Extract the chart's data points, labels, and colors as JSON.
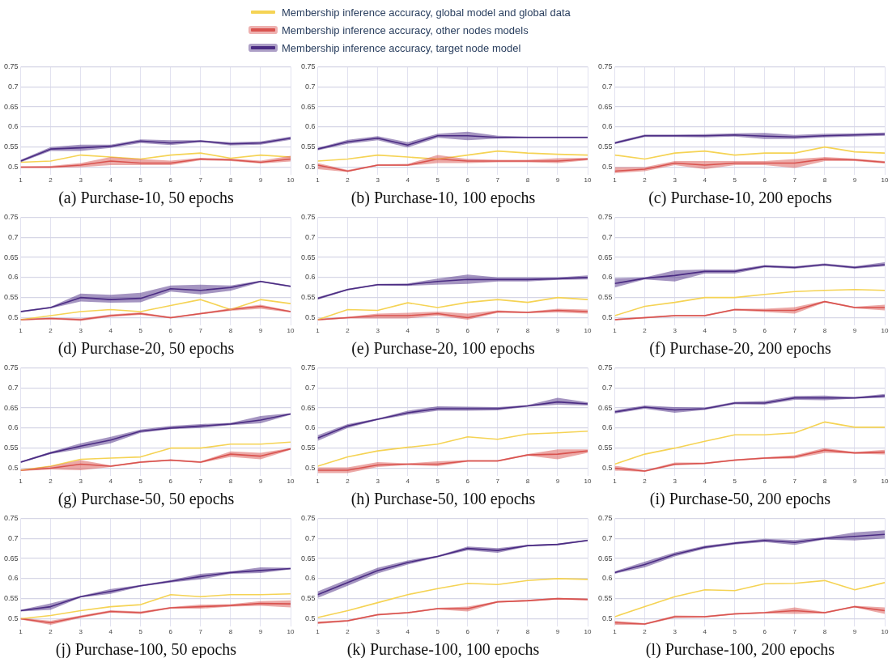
{
  "chart_data": [
    {
      "type": "line",
      "title": "(a) Purchase-10, 50 epochs",
      "x": [
        1,
        2,
        3,
        4,
        5,
        6,
        7,
        8,
        9,
        10
      ],
      "xlim": [
        1,
        10
      ],
      "xticks": [
        1,
        2,
        3,
        4,
        5,
        6,
        7,
        8,
        9,
        10
      ],
      "ylim": [
        0.48,
        0.75
      ],
      "yticks": [
        0.5,
        0.55,
        0.6,
        0.65,
        0.7,
        0.75
      ],
      "grid": true,
      "legend": "top",
      "series": [
        {
          "name": "Membership inference accuracy, global model and global data",
          "color": "#f5d354",
          "values": [
            0.512,
            0.515,
            0.53,
            0.525,
            0.52,
            0.53,
            0.535,
            0.522,
            0.53,
            0.525
          ]
        },
        {
          "name": "Membership inference accuracy, other nodes models",
          "color": "#d9534f",
          "values": [
            0.5,
            0.5,
            0.505,
            0.515,
            0.51,
            0.51,
            0.52,
            0.518,
            0.512,
            0.52
          ],
          "lower": [
            0.498,
            0.498,
            0.5,
            0.505,
            0.505,
            0.505,
            0.517,
            0.515,
            0.509,
            0.514
          ],
          "upper": [
            0.502,
            0.503,
            0.51,
            0.525,
            0.52,
            0.516,
            0.523,
            0.521,
            0.516,
            0.528
          ]
        },
        {
          "name": "Membership inference accuracy, target node model",
          "color": "#4b2c83",
          "values": [
            0.515,
            0.545,
            0.548,
            0.552,
            0.565,
            0.56,
            0.565,
            0.558,
            0.56,
            0.572
          ],
          "lower": [
            0.512,
            0.54,
            0.54,
            0.548,
            0.56,
            0.555,
            0.562,
            0.554,
            0.556,
            0.568
          ],
          "upper": [
            0.518,
            0.55,
            0.556,
            0.556,
            0.569,
            0.567,
            0.567,
            0.562,
            0.564,
            0.576
          ]
        }
      ]
    },
    {
      "type": "line",
      "title": "(b) Purchase-10, 100 epochs",
      "x": [
        1,
        2,
        3,
        4,
        5,
        6,
        7,
        8,
        9,
        10
      ],
      "xlim": [
        1,
        10
      ],
      "xticks": [
        1,
        2,
        3,
        4,
        5,
        6,
        7,
        8,
        9,
        10
      ],
      "ylim": [
        0.48,
        0.75
      ],
      "yticks": [
        0.5,
        0.55,
        0.6,
        0.65,
        0.7,
        0.75
      ],
      "grid": true,
      "series": [
        {
          "color": "#f5d354",
          "values": [
            0.515,
            0.52,
            0.53,
            0.525,
            0.52,
            0.53,
            0.54,
            0.535,
            0.532,
            0.53
          ]
        },
        {
          "color": "#d9534f",
          "values": [
            0.505,
            0.49,
            0.505,
            0.505,
            0.52,
            0.515,
            0.515,
            0.515,
            0.515,
            0.52
          ],
          "lower": [
            0.495,
            0.488,
            0.503,
            0.503,
            0.51,
            0.51,
            0.512,
            0.512,
            0.51,
            0.517
          ],
          "upper": [
            0.51,
            0.493,
            0.507,
            0.508,
            0.53,
            0.52,
            0.518,
            0.518,
            0.522,
            0.523
          ]
        },
        {
          "color": "#4b2c83",
          "values": [
            0.545,
            0.563,
            0.572,
            0.555,
            0.578,
            0.578,
            0.574,
            0.574,
            0.574,
            0.574
          ],
          "lower": [
            0.542,
            0.558,
            0.567,
            0.549,
            0.573,
            0.567,
            0.571,
            0.572,
            0.572,
            0.572
          ],
          "upper": [
            0.548,
            0.568,
            0.577,
            0.562,
            0.583,
            0.588,
            0.578,
            0.576,
            0.576,
            0.576
          ]
        }
      ]
    },
    {
      "type": "line",
      "title": "(c) Purchase-10, 200 epochs",
      "x": [
        1,
        2,
        3,
        4,
        5,
        6,
        7,
        8,
        9,
        10
      ],
      "xlim": [
        1,
        10
      ],
      "xticks": [
        1,
        2,
        3,
        4,
        5,
        6,
        7,
        8,
        9,
        10
      ],
      "ylim": [
        0.48,
        0.75
      ],
      "yticks": [
        0.5,
        0.55,
        0.6,
        0.65,
        0.7,
        0.75
      ],
      "grid": true,
      "series": [
        {
          "color": "#f5d354",
          "values": [
            0.53,
            0.52,
            0.535,
            0.54,
            0.53,
            0.535,
            0.535,
            0.55,
            0.538,
            0.535
          ]
        },
        {
          "color": "#d9534f",
          "values": [
            0.49,
            0.495,
            0.51,
            0.505,
            0.51,
            0.51,
            0.51,
            0.52,
            0.518,
            0.512
          ],
          "lower": [
            0.485,
            0.49,
            0.505,
            0.495,
            0.505,
            0.505,
            0.498,
            0.515,
            0.515,
            0.509
          ],
          "upper": [
            0.5,
            0.5,
            0.515,
            0.515,
            0.515,
            0.515,
            0.52,
            0.525,
            0.521,
            0.515
          ]
        },
        {
          "color": "#4b2c83",
          "values": [
            0.56,
            0.578,
            0.578,
            0.578,
            0.58,
            0.577,
            0.575,
            0.578,
            0.58,
            0.582
          ],
          "lower": [
            0.557,
            0.575,
            0.575,
            0.574,
            0.576,
            0.57,
            0.57,
            0.574,
            0.576,
            0.578
          ],
          "upper": [
            0.563,
            0.581,
            0.581,
            0.582,
            0.584,
            0.585,
            0.58,
            0.583,
            0.584,
            0.586
          ]
        }
      ]
    },
    {
      "type": "line",
      "title": "(d) Purchase-20, 50 epochs",
      "x": [
        1,
        2,
        3,
        4,
        5,
        6,
        7,
        8,
        9,
        10
      ],
      "xlim": [
        1,
        10
      ],
      "xticks": [
        1,
        2,
        3,
        4,
        5,
        6,
        7,
        8,
        9,
        10
      ],
      "ylim": [
        0.48,
        0.75
      ],
      "yticks": [
        0.5,
        0.55,
        0.6,
        0.65,
        0.7,
        0.75
      ],
      "grid": true,
      "series": [
        {
          "color": "#f5d354",
          "values": [
            0.495,
            0.505,
            0.515,
            0.52,
            0.515,
            0.53,
            0.545,
            0.52,
            0.545,
            0.535
          ]
        },
        {
          "color": "#d9534f",
          "values": [
            0.495,
            0.498,
            0.495,
            0.505,
            0.51,
            0.5,
            0.51,
            0.52,
            0.528,
            0.515
          ],
          "lower": [
            0.493,
            0.496,
            0.492,
            0.502,
            0.507,
            0.498,
            0.508,
            0.517,
            0.522,
            0.513
          ],
          "upper": [
            0.497,
            0.5,
            0.498,
            0.508,
            0.513,
            0.502,
            0.512,
            0.523,
            0.532,
            0.517
          ]
        },
        {
          "color": "#4b2c83",
          "values": [
            0.515,
            0.525,
            0.55,
            0.545,
            0.548,
            0.572,
            0.568,
            0.575,
            0.59,
            0.578
          ],
          "lower": [
            0.513,
            0.523,
            0.54,
            0.537,
            0.538,
            0.565,
            0.558,
            0.567,
            0.588,
            0.576
          ],
          "upper": [
            0.517,
            0.527,
            0.56,
            0.557,
            0.562,
            0.58,
            0.582,
            0.58,
            0.592,
            0.58
          ]
        }
      ]
    },
    {
      "type": "line",
      "title": "(e) Purchase-20, 100 epochs",
      "x": [
        1,
        2,
        3,
        4,
        5,
        6,
        7,
        8,
        9,
        10
      ],
      "xlim": [
        1,
        10
      ],
      "xticks": [
        1,
        2,
        3,
        4,
        5,
        6,
        7,
        8,
        9,
        10
      ],
      "ylim": [
        0.48,
        0.75
      ],
      "yticks": [
        0.5,
        0.55,
        0.6,
        0.65,
        0.7,
        0.75
      ],
      "grid": true,
      "series": [
        {
          "color": "#f5d354",
          "values": [
            0.495,
            0.52,
            0.518,
            0.537,
            0.525,
            0.538,
            0.545,
            0.538,
            0.55,
            0.545
          ]
        },
        {
          "color": "#d9534f",
          "values": [
            0.495,
            0.5,
            0.505,
            0.505,
            0.51,
            0.5,
            0.515,
            0.513,
            0.518,
            0.515
          ],
          "lower": [
            0.493,
            0.498,
            0.498,
            0.498,
            0.505,
            0.495,
            0.512,
            0.511,
            0.513,
            0.51
          ],
          "upper": [
            0.497,
            0.502,
            0.51,
            0.512,
            0.515,
            0.51,
            0.518,
            0.515,
            0.522,
            0.52
          ]
        },
        {
          "color": "#4b2c83",
          "values": [
            0.548,
            0.57,
            0.582,
            0.582,
            0.59,
            0.595,
            0.595,
            0.595,
            0.597,
            0.6
          ],
          "lower": [
            0.545,
            0.568,
            0.58,
            0.579,
            0.582,
            0.584,
            0.59,
            0.59,
            0.594,
            0.595
          ],
          "upper": [
            0.551,
            0.572,
            0.584,
            0.585,
            0.597,
            0.607,
            0.6,
            0.6,
            0.6,
            0.605
          ]
        }
      ]
    },
    {
      "type": "line",
      "title": "(f) Purchase-20, 200 epochs",
      "x": [
        1,
        2,
        3,
        4,
        5,
        6,
        7,
        8,
        9,
        10
      ],
      "xlim": [
        1,
        10
      ],
      "xticks": [
        1,
        2,
        3,
        4,
        5,
        6,
        7,
        8,
        9,
        10
      ],
      "ylim": [
        0.48,
        0.75
      ],
      "yticks": [
        0.5,
        0.55,
        0.6,
        0.65,
        0.7,
        0.75
      ],
      "grid": true,
      "series": [
        {
          "color": "#f5d354",
          "values": [
            0.505,
            0.528,
            0.538,
            0.55,
            0.55,
            0.558,
            0.565,
            0.568,
            0.57,
            0.568
          ]
        },
        {
          "color": "#d9534f",
          "values": [
            0.495,
            0.5,
            0.505,
            0.505,
            0.52,
            0.518,
            0.518,
            0.54,
            0.525,
            0.525
          ],
          "lower": [
            0.493,
            0.498,
            0.503,
            0.503,
            0.518,
            0.514,
            0.51,
            0.538,
            0.523,
            0.518
          ],
          "upper": [
            0.497,
            0.502,
            0.507,
            0.507,
            0.522,
            0.522,
            0.526,
            0.542,
            0.527,
            0.532
          ]
        },
        {
          "color": "#4b2c83",
          "values": [
            0.585,
            0.598,
            0.605,
            0.615,
            0.615,
            0.628,
            0.625,
            0.632,
            0.625,
            0.632
          ],
          "lower": [
            0.575,
            0.595,
            0.59,
            0.61,
            0.61,
            0.625,
            0.622,
            0.629,
            0.622,
            0.628
          ],
          "upper": [
            0.598,
            0.6,
            0.618,
            0.62,
            0.62,
            0.631,
            0.628,
            0.635,
            0.628,
            0.638
          ]
        }
      ]
    },
    {
      "type": "line",
      "title": "(g) Purchase-50, 50 epochs",
      "x": [
        1,
        2,
        3,
        4,
        5,
        6,
        7,
        8,
        9,
        10
      ],
      "xlim": [
        1,
        10
      ],
      "xticks": [
        1,
        2,
        3,
        4,
        5,
        6,
        7,
        8,
        9,
        10
      ],
      "ylim": [
        0.48,
        0.75
      ],
      "yticks": [
        0.5,
        0.55,
        0.6,
        0.65,
        0.7,
        0.75
      ],
      "grid": true,
      "series": [
        {
          "color": "#f5d354",
          "values": [
            0.495,
            0.505,
            0.522,
            0.525,
            0.528,
            0.55,
            0.55,
            0.56,
            0.56,
            0.565
          ]
        },
        {
          "color": "#d9534f",
          "values": [
            0.495,
            0.5,
            0.51,
            0.505,
            0.515,
            0.52,
            0.515,
            0.535,
            0.53,
            0.548
          ],
          "lower": [
            0.493,
            0.497,
            0.495,
            0.503,
            0.513,
            0.518,
            0.513,
            0.528,
            0.522,
            0.546
          ],
          "upper": [
            0.497,
            0.505,
            0.52,
            0.507,
            0.517,
            0.522,
            0.517,
            0.542,
            0.538,
            0.55
          ]
        },
        {
          "color": "#4b2c83",
          "values": [
            0.515,
            0.538,
            0.555,
            0.57,
            0.592,
            0.6,
            0.605,
            0.61,
            0.62,
            0.635
          ],
          "lower": [
            0.513,
            0.535,
            0.548,
            0.562,
            0.588,
            0.597,
            0.6,
            0.607,
            0.612,
            0.633
          ],
          "upper": [
            0.517,
            0.541,
            0.562,
            0.578,
            0.596,
            0.605,
            0.61,
            0.613,
            0.63,
            0.637
          ]
        }
      ]
    },
    {
      "type": "line",
      "title": "(h) Purchase-50, 100 epochs",
      "x": [
        1,
        2,
        3,
        4,
        5,
        6,
        7,
        8,
        9,
        10
      ],
      "xlim": [
        1,
        10
      ],
      "xticks": [
        1,
        2,
        3,
        4,
        5,
        6,
        7,
        8,
        9,
        10
      ],
      "ylim": [
        0.48,
        0.75
      ],
      "yticks": [
        0.5,
        0.55,
        0.6,
        0.65,
        0.7,
        0.75
      ],
      "grid": true,
      "series": [
        {
          "color": "#f5d354",
          "values": [
            0.505,
            0.528,
            0.543,
            0.552,
            0.56,
            0.578,
            0.572,
            0.585,
            0.588,
            0.592
          ]
        },
        {
          "color": "#d9534f",
          "values": [
            0.495,
            0.495,
            0.508,
            0.51,
            0.51,
            0.518,
            0.518,
            0.533,
            0.535,
            0.543
          ],
          "lower": [
            0.488,
            0.488,
            0.503,
            0.508,
            0.505,
            0.516,
            0.516,
            0.531,
            0.522,
            0.538
          ],
          "upper": [
            0.502,
            0.502,
            0.515,
            0.512,
            0.517,
            0.52,
            0.52,
            0.535,
            0.547,
            0.547
          ]
        },
        {
          "color": "#4b2c83",
          "values": [
            0.575,
            0.605,
            0.622,
            0.638,
            0.648,
            0.648,
            0.648,
            0.655,
            0.665,
            0.66
          ],
          "lower": [
            0.568,
            0.6,
            0.62,
            0.633,
            0.643,
            0.643,
            0.644,
            0.653,
            0.658,
            0.656
          ],
          "upper": [
            0.582,
            0.61,
            0.624,
            0.643,
            0.654,
            0.653,
            0.652,
            0.657,
            0.675,
            0.664
          ]
        }
      ]
    },
    {
      "type": "line",
      "title": "(i) Purchase-50, 200 epochs",
      "x": [
        1,
        2,
        3,
        4,
        5,
        6,
        7,
        8,
        9,
        10
      ],
      "xlim": [
        1,
        10
      ],
      "xticks": [
        1,
        2,
        3,
        4,
        5,
        6,
        7,
        8,
        9,
        10
      ],
      "ylim": [
        0.48,
        0.75
      ],
      "yticks": [
        0.5,
        0.55,
        0.6,
        0.65,
        0.7,
        0.75
      ],
      "grid": true,
      "series": [
        {
          "color": "#f5d354",
          "values": [
            0.51,
            0.535,
            0.55,
            0.567,
            0.583,
            0.583,
            0.588,
            0.615,
            0.602,
            0.602
          ]
        },
        {
          "color": "#d9534f",
          "values": [
            0.5,
            0.493,
            0.51,
            0.512,
            0.52,
            0.525,
            0.528,
            0.545,
            0.538,
            0.54
          ],
          "lower": [
            0.494,
            0.491,
            0.507,
            0.51,
            0.518,
            0.523,
            0.524,
            0.538,
            0.536,
            0.534
          ],
          "upper": [
            0.506,
            0.495,
            0.514,
            0.514,
            0.522,
            0.527,
            0.532,
            0.55,
            0.54,
            0.546
          ]
        },
        {
          "color": "#4b2c83",
          "values": [
            0.64,
            0.652,
            0.645,
            0.648,
            0.662,
            0.662,
            0.675,
            0.675,
            0.675,
            0.68
          ],
          "lower": [
            0.636,
            0.648,
            0.638,
            0.645,
            0.659,
            0.658,
            0.67,
            0.669,
            0.673,
            0.675
          ],
          "upper": [
            0.644,
            0.656,
            0.652,
            0.651,
            0.665,
            0.667,
            0.68,
            0.681,
            0.677,
            0.685
          ]
        }
      ]
    },
    {
      "type": "line",
      "title": "(j) Purchase-100, 50 epochs",
      "x": [
        1,
        2,
        3,
        4,
        5,
        6,
        7,
        8,
        9,
        10
      ],
      "xlim": [
        1,
        10
      ],
      "xticks": [
        1,
        2,
        3,
        4,
        5,
        6,
        7,
        8,
        9,
        10
      ],
      "ylim": [
        0.48,
        0.75
      ],
      "yticks": [
        0.5,
        0.55,
        0.6,
        0.65,
        0.7,
        0.75
      ],
      "grid": true,
      "series": [
        {
          "color": "#f5d354",
          "values": [
            0.5,
            0.508,
            0.52,
            0.53,
            0.535,
            0.56,
            0.555,
            0.56,
            0.56,
            0.562
          ]
        },
        {
          "color": "#d9534f",
          "values": [
            0.5,
            0.49,
            0.505,
            0.518,
            0.515,
            0.527,
            0.53,
            0.533,
            0.538,
            0.537
          ],
          "lower": [
            0.498,
            0.485,
            0.502,
            0.515,
            0.512,
            0.525,
            0.525,
            0.53,
            0.532,
            0.528
          ],
          "upper": [
            0.502,
            0.495,
            0.508,
            0.521,
            0.518,
            0.529,
            0.535,
            0.536,
            0.544,
            0.546
          ]
        },
        {
          "color": "#4b2c83",
          "values": [
            0.52,
            0.53,
            0.555,
            0.568,
            0.582,
            0.593,
            0.605,
            0.615,
            0.62,
            0.625
          ],
          "lower": [
            0.518,
            0.522,
            0.553,
            0.562,
            0.58,
            0.59,
            0.598,
            0.612,
            0.614,
            0.623
          ],
          "upper": [
            0.522,
            0.538,
            0.557,
            0.574,
            0.584,
            0.596,
            0.612,
            0.618,
            0.628,
            0.627
          ]
        }
      ]
    },
    {
      "type": "line",
      "title": "(k) Purchase-100, 100 epochs",
      "x": [
        1,
        2,
        3,
        4,
        5,
        6,
        7,
        8,
        9,
        10
      ],
      "xlim": [
        1,
        10
      ],
      "xticks": [
        1,
        2,
        3,
        4,
        5,
        6,
        7,
        8,
        9,
        10
      ],
      "ylim": [
        0.48,
        0.75
      ],
      "yticks": [
        0.5,
        0.55,
        0.6,
        0.65,
        0.7,
        0.75
      ],
      "grid": true,
      "series": [
        {
          "color": "#f5d354",
          "values": [
            0.503,
            0.52,
            0.54,
            0.56,
            0.575,
            0.588,
            0.585,
            0.595,
            0.6,
            0.598
          ]
        },
        {
          "color": "#d9534f",
          "values": [
            0.49,
            0.495,
            0.51,
            0.515,
            0.525,
            0.525,
            0.542,
            0.545,
            0.55,
            0.548
          ],
          "lower": [
            0.487,
            0.493,
            0.508,
            0.513,
            0.523,
            0.518,
            0.54,
            0.543,
            0.548,
            0.546
          ],
          "upper": [
            0.493,
            0.497,
            0.512,
            0.517,
            0.527,
            0.53,
            0.544,
            0.547,
            0.552,
            0.55
          ]
        },
        {
          "color": "#4b2c83",
          "values": [
            0.56,
            0.59,
            0.62,
            0.64,
            0.655,
            0.675,
            0.67,
            0.682,
            0.685,
            0.695
          ],
          "lower": [
            0.552,
            0.582,
            0.613,
            0.635,
            0.653,
            0.67,
            0.664,
            0.68,
            0.683,
            0.693
          ],
          "upper": [
            0.568,
            0.598,
            0.627,
            0.645,
            0.657,
            0.68,
            0.676,
            0.684,
            0.687,
            0.697
          ]
        }
      ]
    },
    {
      "type": "line",
      "title": "(l) Purchase-100, 200 epochs",
      "x": [
        1,
        2,
        3,
        4,
        5,
        6,
        7,
        8,
        9,
        10
      ],
      "xlim": [
        1,
        10
      ],
      "xticks": [
        1,
        2,
        3,
        4,
        5,
        6,
        7,
        8,
        9,
        10
      ],
      "ylim": [
        0.48,
        0.75
      ],
      "yticks": [
        0.5,
        0.55,
        0.6,
        0.65,
        0.7,
        0.75
      ],
      "grid": true,
      "series": [
        {
          "color": "#f5d354",
          "values": [
            0.505,
            0.53,
            0.555,
            0.572,
            0.57,
            0.587,
            0.588,
            0.595,
            0.572,
            0.59
          ]
        },
        {
          "color": "#d9534f",
          "values": [
            0.49,
            0.487,
            0.505,
            0.505,
            0.512,
            0.515,
            0.52,
            0.515,
            0.53,
            0.52
          ],
          "lower": [
            0.485,
            0.485,
            0.502,
            0.503,
            0.51,
            0.513,
            0.512,
            0.513,
            0.528,
            0.512
          ],
          "upper": [
            0.495,
            0.489,
            0.508,
            0.507,
            0.514,
            0.517,
            0.528,
            0.517,
            0.532,
            0.528
          ]
        },
        {
          "color": "#4b2c83",
          "values": [
            0.615,
            0.635,
            0.66,
            0.678,
            0.688,
            0.695,
            0.69,
            0.7,
            0.705,
            0.71
          ],
          "lower": [
            0.612,
            0.628,
            0.655,
            0.674,
            0.685,
            0.691,
            0.684,
            0.697,
            0.695,
            0.7
          ],
          "upper": [
            0.618,
            0.642,
            0.665,
            0.682,
            0.691,
            0.699,
            0.696,
            0.703,
            0.715,
            0.72
          ]
        }
      ]
    }
  ]
}
